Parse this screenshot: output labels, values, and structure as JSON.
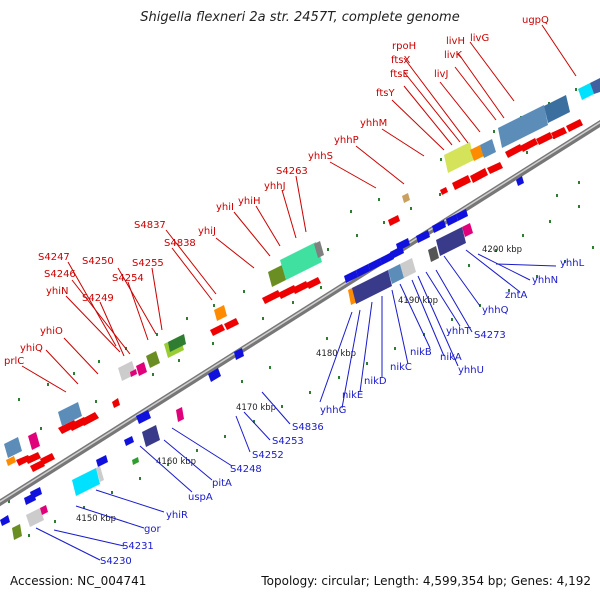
{
  "title": "Shigella flexneri 2a str. 2457T, complete genome",
  "footer": {
    "accession": "Accession: NC_004741",
    "summary": "Topology: circular; Length: 4,599,354 bp; Genes: 4,192"
  },
  "scale_ticks": [
    "4150 kbp",
    "4160 kbp",
    "4170 kbp",
    "4180 kbp",
    "4190 kbp",
    "4200 kbp"
  ],
  "colors": {
    "forward_label": "#cc0000",
    "reverse_label": "#1a1acc",
    "backbone": "#8a8a8a",
    "forward_gene": "#ee0000",
    "reverse_gene": "#1111dd",
    "tick_dot": "#2e7d32"
  },
  "top_genes": [
    "ugpQ",
    "livG",
    "livH",
    "livK",
    "rpoH",
    "ftsX",
    "ftsE",
    "livJ",
    "ftsY",
    "yhhM",
    "yhhP",
    "yhhS",
    "S4263",
    "yhhJ",
    "yhiH",
    "yhiI",
    "yhiJ",
    "S4837",
    "S4838",
    "S4255",
    "S4250",
    "S4254",
    "S4247",
    "S4246",
    "yhiN",
    "S4249",
    "yhiO",
    "yhiQ",
    "prlC"
  ],
  "bottom_genes": [
    "yhhL",
    "yhhN",
    "zntA",
    "yhhQ",
    "S4273",
    "yhhT",
    "yhhU",
    "nikA",
    "nikB",
    "nikC",
    "nikD",
    "nikE",
    "yhhG",
    "S4836",
    "S4253",
    "S4252",
    "S4248",
    "pitA",
    "uspA",
    "yhiR",
    "gor",
    "S4231",
    "S4230"
  ]
}
